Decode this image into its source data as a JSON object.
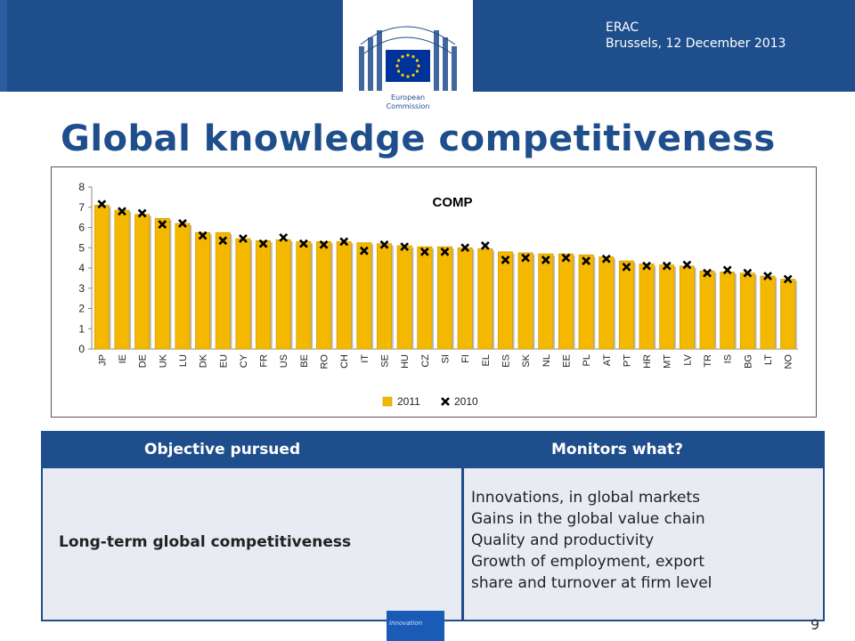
{
  "header": {
    "event": "ERAC",
    "place_date": "Brussels, 12 December 2013",
    "logo_text_1": "European",
    "logo_text_2": "Commission",
    "blue": "#1f4e8c"
  },
  "title": "Global knowledge competitiveness",
  "chart_data": {
    "type": "bar",
    "title": "COMP",
    "xlabel": "",
    "ylabel": "",
    "ylim": [
      0,
      8
    ],
    "yticks": [
      0,
      1,
      2,
      3,
      4,
      5,
      6,
      7,
      8
    ],
    "grid": false,
    "legend_position": "bottom",
    "categories": [
      "JP",
      "IE",
      "DE",
      "UK",
      "LU",
      "DK",
      "EU",
      "CY",
      "FR",
      "US",
      "BE",
      "RO",
      "CH",
      "IT",
      "SE",
      "HU",
      "CZ",
      "SI",
      "FI",
      "EL",
      "ES",
      "SK",
      "NL",
      "EE",
      "PL",
      "AT",
      "PT",
      "HR",
      "MT",
      "LV",
      "TR",
      "IS",
      "BG",
      "LT",
      "NO"
    ],
    "series": [
      {
        "name": "2011",
        "marker": "bar",
        "color": "#f5b800",
        "values": [
          7.1,
          6.85,
          6.65,
          6.45,
          6.2,
          5.75,
          5.75,
          5.45,
          5.35,
          5.4,
          5.3,
          5.3,
          5.3,
          5.25,
          5.2,
          5.1,
          5.05,
          5.05,
          5.0,
          4.95,
          4.8,
          4.75,
          4.7,
          4.7,
          4.65,
          4.55,
          4.35,
          4.2,
          4.15,
          4.1,
          3.85,
          3.8,
          3.75,
          3.6,
          3.45
        ]
      },
      {
        "name": "2010",
        "marker": "x",
        "color": "#000000",
        "values": [
          7.15,
          6.8,
          6.7,
          6.15,
          6.2,
          5.6,
          5.35,
          5.45,
          5.2,
          5.5,
          5.2,
          5.15,
          5.3,
          4.85,
          5.15,
          5.05,
          4.8,
          4.8,
          5.0,
          5.1,
          4.4,
          4.5,
          4.4,
          4.5,
          4.35,
          4.45,
          4.05,
          4.1,
          4.1,
          4.15,
          3.75,
          3.9,
          3.75,
          3.6,
          3.45
        ]
      }
    ]
  },
  "table": {
    "headers": [
      "Objective pursued",
      "Monitors what?"
    ],
    "objective": "Long-term global competitiveness",
    "monitors": [
      "Innovations, in global markets",
      "Gains in the global value chain",
      "Quality and productivity",
      "Growth of employment, export",
      "share and turnover at firm level"
    ]
  },
  "footer": {
    "label": "Innovation",
    "page": "9"
  }
}
